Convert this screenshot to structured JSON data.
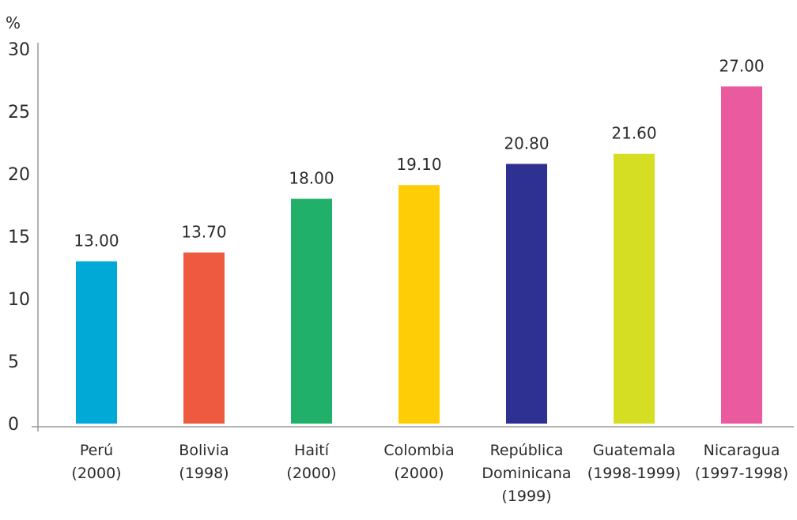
{
  "chart_data": {
    "type": "bar",
    "y_unit_label": "%",
    "ylim": [
      0,
      30
    ],
    "yticks": [
      0,
      5,
      10,
      15,
      20,
      25,
      30
    ],
    "grid": false,
    "legend": "none",
    "categories": [
      [
        "Perú",
        "(2000)"
      ],
      [
        "Bolivia",
        "(1998)"
      ],
      [
        "Haití",
        "(2000)"
      ],
      [
        "Colombia",
        "(2000)"
      ],
      [
        "República",
        "Dominicana",
        "(1999)"
      ],
      [
        "Guatemala",
        "(1998-1999)"
      ],
      [
        "Nicaragua",
        "(1997-1998)"
      ]
    ],
    "values": [
      13.0,
      13.7,
      18.0,
      19.1,
      20.8,
      21.6,
      27.0
    ],
    "value_labels": [
      "13.00",
      "13.70",
      "18.00",
      "19.10",
      "20.80",
      "21.60",
      "27.00"
    ],
    "colors": [
      "#00a9d6",
      "#ee5a3f",
      "#20b06a",
      "#ffcd05",
      "#2e3192",
      "#d5de22",
      "#ea5a9e"
    ]
  }
}
